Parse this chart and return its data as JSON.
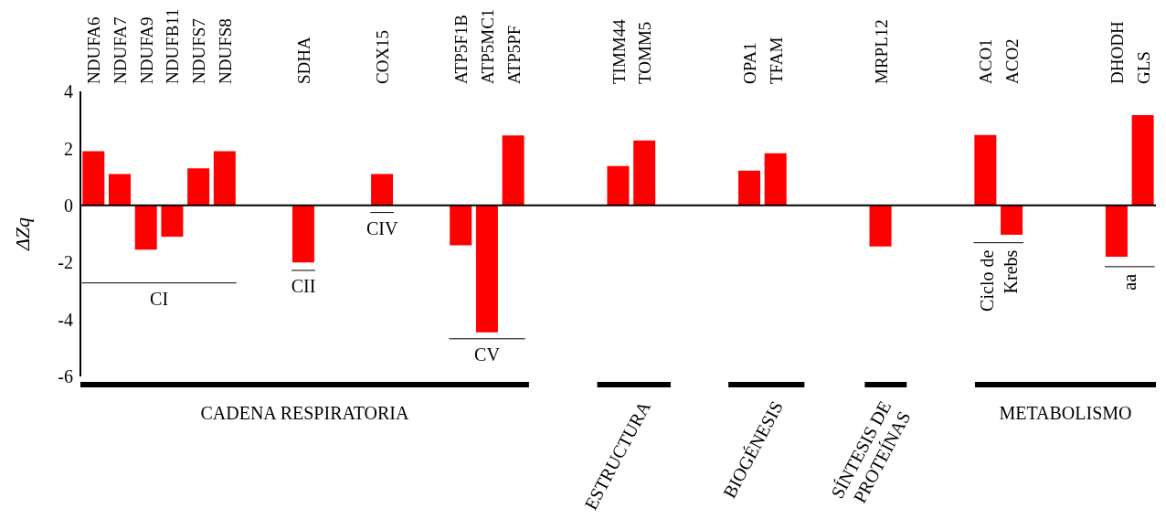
{
  "chart_data": {
    "type": "bar",
    "ylabel": "ΔZq",
    "color": "#ff0000",
    "categories": [
      "NDUFA6",
      "NDUFA7",
      "NDUFA9",
      "NDUFB11",
      "NDUFS7",
      "NDUFS8",
      null,
      null,
      "SDHA",
      null,
      null,
      "COX15",
      null,
      null,
      "ATP5F1B",
      "ATP5MC1",
      "ATP5PF",
      null,
      null,
      null,
      "TIMM44",
      "TOMM5",
      null,
      null,
      null,
      "OPA1",
      "TFAM",
      null,
      null,
      null,
      "MRPL12",
      null,
      null,
      null,
      "ACO1",
      "ACO2",
      null,
      null,
      null,
      "DHODH",
      "GLS"
    ],
    "values": [
      1.9,
      1.1,
      -1.55,
      -1.1,
      1.3,
      1.9,
      null,
      null,
      -2.0,
      null,
      null,
      1.1,
      null,
      null,
      -1.4,
      -4.45,
      2.45,
      null,
      null,
      null,
      1.38,
      2.28,
      null,
      null,
      null,
      1.22,
      1.83,
      null,
      null,
      null,
      -1.44,
      null,
      null,
      null,
      2.47,
      -1.03,
      null,
      null,
      null,
      -1.8,
      3.17
    ],
    "ref_lines": [
      {
        "axis": "y",
        "value": 0,
        "color": "#000000"
      }
    ],
    "ylim": [
      -6,
      4
    ],
    "yticks": [
      -6,
      -4,
      -2,
      0,
      2,
      4
    ],
    "annotations": [
      "CI",
      "CII",
      "CIV",
      "CV",
      "Ciclo de Krebs",
      "aa",
      "CADENA RESPIRATORIA",
      "ESTRUCTURA",
      "BIOGÉNESIS",
      "SÍNTESIS DE PROTEÍNAS",
      "METABOLISMO"
    ]
  }
}
